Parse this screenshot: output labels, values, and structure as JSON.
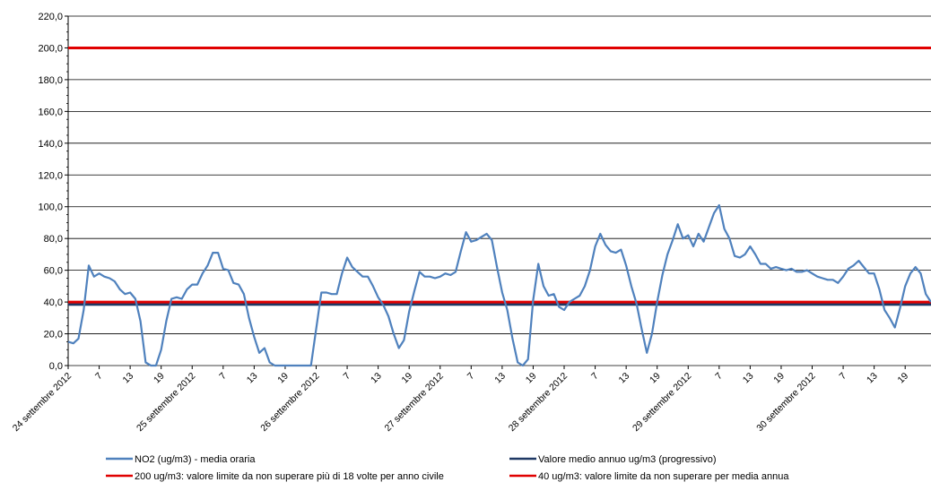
{
  "chart_data": {
    "type": "line",
    "ylim": [
      0,
      220
    ],
    "y_ticks": [
      "0,0",
      "20,0",
      "40,0",
      "60,0",
      "80,0",
      "100,0",
      "120,0",
      "140,0",
      "160,0",
      "180,0",
      "200,0",
      "220,0"
    ],
    "y_tick_values": [
      0,
      20,
      40,
      60,
      80,
      100,
      120,
      140,
      160,
      180,
      200,
      220
    ],
    "grid": true,
    "legend_position": "bottom",
    "x_ticks": [
      {
        "h": 0,
        "label": "24 settembre 2012"
      },
      {
        "h": 6,
        "label": "7"
      },
      {
        "h": 12,
        "label": "13"
      },
      {
        "h": 18,
        "label": "19"
      },
      {
        "h": 24,
        "label": "25 settembre 2012"
      },
      {
        "h": 30,
        "label": "7"
      },
      {
        "h": 36,
        "label": "13"
      },
      {
        "h": 42,
        "label": "19"
      },
      {
        "h": 48,
        "label": "26 settembre 2012"
      },
      {
        "h": 54,
        "label": "7"
      },
      {
        "h": 60,
        "label": "13"
      },
      {
        "h": 66,
        "label": "19"
      },
      {
        "h": 72,
        "label": "27 settembre 2012"
      },
      {
        "h": 78,
        "label": "7"
      },
      {
        "h": 84,
        "label": "13"
      },
      {
        "h": 90,
        "label": "19"
      },
      {
        "h": 96,
        "label": "28 settembre 2012"
      },
      {
        "h": 102,
        "label": "7"
      },
      {
        "h": 108,
        "label": "13"
      },
      {
        "h": 114,
        "label": "19"
      },
      {
        "h": 120,
        "label": "29 settembre 2012"
      },
      {
        "h": 126,
        "label": "7"
      },
      {
        "h": 132,
        "label": "13"
      },
      {
        "h": 138,
        "label": "19"
      },
      {
        "h": 144,
        "label": "30 settembre 2012"
      },
      {
        "h": 150,
        "label": "7"
      },
      {
        "h": 156,
        "label": "13"
      },
      {
        "h": 162,
        "label": "19"
      }
    ],
    "x_max_hours": 167,
    "series": [
      {
        "name": "NO2 (ug/m3)  - media oraria",
        "color": "#4f81bd",
        "values": [
          15,
          14,
          17,
          35,
          63,
          56,
          58,
          56,
          55,
          53,
          48,
          45,
          46,
          42,
          28,
          2,
          0,
          0,
          10,
          28,
          42,
          43,
          42,
          48,
          51,
          51,
          58,
          63,
          71,
          71,
          61,
          60,
          52,
          51,
          45,
          30,
          18,
          8,
          11,
          2,
          0,
          0,
          0,
          0,
          0,
          0,
          0,
          0,
          23,
          46,
          46,
          45,
          45,
          58,
          68,
          62,
          59,
          56,
          56,
          50,
          43,
          38,
          31,
          20,
          11,
          16,
          34,
          47,
          59,
          56,
          56,
          55,
          56,
          58,
          57,
          59,
          72,
          84,
          78,
          79,
          81,
          83,
          79,
          62,
          46,
          35,
          17,
          2,
          0,
          4,
          41,
          64,
          50,
          44,
          45,
          37,
          35,
          40,
          42,
          44,
          50,
          60,
          75,
          83,
          76,
          72,
          71,
          73,
          63,
          50,
          39,
          23,
          8,
          20,
          40,
          57,
          70,
          79,
          89,
          80,
          82,
          75,
          83,
          78,
          87,
          96,
          101,
          86,
          80,
          69,
          68,
          70,
          75,
          70,
          64,
          64,
          61,
          62,
          61,
          60,
          61,
          59,
          59,
          60,
          58,
          56,
          55,
          54,
          54,
          52,
          56,
          61,
          63,
          66,
          62,
          58,
          58,
          48,
          35,
          30,
          24,
          36,
          50,
          58,
          62,
          58,
          45,
          40
        ]
      },
      {
        "name": "Valore medio annuo ug/m3 (progressivo)",
        "color": "#1f3864",
        "constant": 38.5
      },
      {
        "name": "200 ug/m3: valore limite da non superare  più di 18 volte per anno civile",
        "color": "#e00000",
        "constant": 200
      },
      {
        "name": "40 ug/m3: valore limite da non superare per media annua",
        "color": "#e00000",
        "constant": 40
      }
    ]
  }
}
